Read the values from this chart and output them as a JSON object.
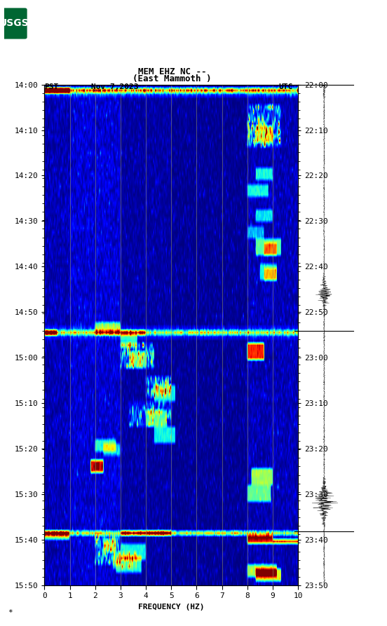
{
  "title_line1": "MEM EHZ NC --",
  "title_line2": "(East Mammoth )",
  "left_time_label": "PST",
  "date_label": "Nov 7,2023",
  "right_time_label": "UTC",
  "left_yticks": [
    "14:00",
    "14:10",
    "14:20",
    "14:30",
    "14:40",
    "14:50",
    "15:00",
    "15:10",
    "15:20",
    "15:30",
    "15:40",
    "15:50"
  ],
  "right_yticks": [
    "22:00",
    "22:10",
    "22:20",
    "22:30",
    "22:40",
    "22:50",
    "23:00",
    "23:10",
    "23:20",
    "23:30",
    "23:40",
    "23:50"
  ],
  "xlabel": "FREQUENCY (HZ)",
  "xticks": [
    0,
    1,
    2,
    3,
    4,
    5,
    6,
    7,
    8,
    9,
    10
  ],
  "fig_width": 5.52,
  "fig_height": 8.93,
  "usgs_green": "#006633",
  "n_time": 120,
  "n_freq": 300,
  "vmin": 0.0,
  "vmax": 6.0,
  "event_rows": [
    1,
    59,
    107
  ],
  "waveform_ticks": [
    0.0,
    0.492,
    0.892
  ]
}
